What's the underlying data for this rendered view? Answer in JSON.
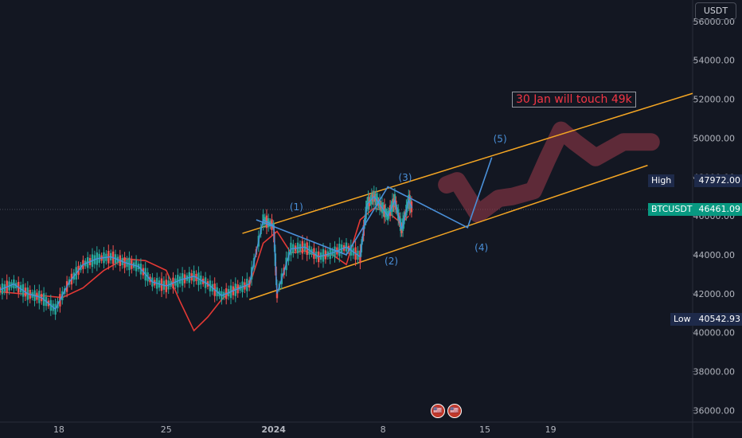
{
  "chart_data": {
    "type": "line",
    "title": "",
    "symbol": "BTCUSDT",
    "currency": "USDT",
    "y_ticks": [
      "56000.00",
      "54000.00",
      "52000.00",
      "50000.00",
      "48000.00",
      "46000.00",
      "44000.00",
      "42000.00",
      "40000.00",
      "38000.00",
      "36000.00"
    ],
    "ylim": [
      35400,
      57100
    ],
    "x_ticks": [
      "18",
      "25",
      "2024",
      "8",
      "15",
      "19"
    ],
    "annotation": "30 Jan will touch 49k",
    "markers": {
      "high": {
        "label": "High",
        "value": "47972.00",
        "price": 47972
      },
      "last": {
        "label": "BTCUSDT",
        "value": "46461.09",
        "price": 46461
      },
      "low": {
        "label": "Low",
        "value": "40542.93",
        "price": 40542
      }
    },
    "wave_labels": [
      "(1)",
      "(2)",
      "(3)",
      "(4)",
      "(5)"
    ],
    "channel": {
      "upper": [
        [
          0.35,
          45100
        ],
        [
          1.0,
          52300
        ]
      ],
      "lower": [
        [
          0.36,
          41700
        ],
        [
          0.935,
          48600
        ]
      ]
    },
    "price_series": {
      "name": "",
      "x": [
        0.0,
        0.02,
        0.04,
        0.06,
        0.08,
        0.1,
        0.12,
        0.14,
        0.16,
        0.18,
        0.2,
        0.22,
        0.24,
        0.26,
        0.28,
        0.3,
        0.32,
        0.34,
        0.36,
        0.38,
        0.395,
        0.4,
        0.42,
        0.44,
        0.46,
        0.48,
        0.5,
        0.52,
        0.53,
        0.54,
        0.55,
        0.56,
        0.57,
        0.58,
        0.59,
        0.595
      ],
      "y": [
        42200,
        42500,
        42000,
        41800,
        41200,
        42600,
        43500,
        43800,
        43900,
        43600,
        43400,
        42600,
        42400,
        42700,
        42900,
        42500,
        41900,
        42200,
        42500,
        45800,
        45500,
        42000,
        44300,
        44400,
        43900,
        44100,
        44400,
        43900,
        46600,
        47000,
        46500,
        46000,
        46800,
        45300,
        46800,
        46400
      ]
    },
    "ma_series": {
      "name": "",
      "x": [
        0.0,
        0.03,
        0.06,
        0.09,
        0.12,
        0.15,
        0.18,
        0.21,
        0.24,
        0.26,
        0.28,
        0.3,
        0.32,
        0.34,
        0.36,
        0.38,
        0.4,
        0.42,
        0.44,
        0.46,
        0.48,
        0.5,
        0.52,
        0.54,
        0.56,
        0.58,
        0.59
      ],
      "y": [
        42100,
        42000,
        41900,
        41800,
        42300,
        43200,
        43800,
        43700,
        43200,
        41600,
        40100,
        40800,
        41700,
        42300,
        42400,
        44600,
        45200,
        44100,
        44200,
        43900,
        44000,
        43500,
        45800,
        46400,
        46200,
        45600,
        46000
      ]
    },
    "wave_path": {
      "name": "",
      "x": [
        0.37,
        0.5,
        0.56,
        0.675,
        0.71
      ],
      "y": [
        45800,
        44000,
        47500,
        45400,
        49000
      ]
    },
    "projection_path": {
      "name": "",
      "x": [
        0.645,
        0.66,
        0.69,
        0.72,
        0.74,
        0.77,
        0.79,
        0.81,
        0.83,
        0.86,
        0.9,
        0.94
      ],
      "y": [
        47600,
        47800,
        46100,
        46900,
        47000,
        47300,
        48900,
        50400,
        49800,
        49000,
        49800,
        49800
      ]
    }
  },
  "ui": {
    "currency_label": "USDT",
    "flag_a": "🇺🇸",
    "flag_b": "🇺🇸"
  }
}
